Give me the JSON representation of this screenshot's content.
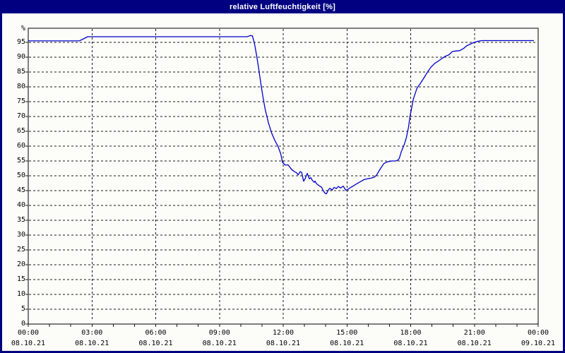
{
  "window": {
    "title": "relative Luftfeuchtigkeit [%]"
  },
  "colors": {
    "titlebar_bg": "#000080",
    "titlebar_text": "#FFFFFF",
    "plot_bg": "#FCFCF8",
    "frame": "#000000",
    "grid": "#1a1a1a",
    "line": "#0000CC",
    "label_text": "#000000"
  },
  "chart_data": {
    "type": "line",
    "title": "relative Luftfeuchtigkeit [%]",
    "ylabel": "%",
    "ylim": [
      0,
      100
    ],
    "xlim_hours": [
      0,
      24
    ],
    "grid": "dashed",
    "y_ticks": [
      0,
      5,
      10,
      15,
      20,
      25,
      30,
      35,
      40,
      45,
      50,
      55,
      60,
      65,
      70,
      75,
      80,
      85,
      90,
      95
    ],
    "x_axis": {
      "major_tick_interval_hours": 3,
      "minor_tick_interval_hours": 1,
      "ticks": [
        {
          "time": "00:00",
          "date": "08.10.21"
        },
        {
          "time": "03:00",
          "date": "08.10.21"
        },
        {
          "time": "06:00",
          "date": "08.10.21"
        },
        {
          "time": "09:00",
          "date": "08.10.21"
        },
        {
          "time": "12:00",
          "date": "08.10.21"
        },
        {
          "time": "15:00",
          "date": "08.10.21"
        },
        {
          "time": "18:00",
          "date": "08.10.21"
        },
        {
          "time": "21:00",
          "date": "08.10.21"
        },
        {
          "time": "00:00",
          "date": "09.10.21"
        }
      ]
    },
    "series": [
      {
        "name": "relative Luftfeuchtigkeit",
        "unit": "%",
        "color": "#0000CC",
        "points": [
          [
            0.0,
            95.5
          ],
          [
            2.4,
            95.5
          ],
          [
            2.6,
            96.2
          ],
          [
            2.8,
            96.9
          ],
          [
            10.3,
            96.9
          ],
          [
            10.45,
            97.3
          ],
          [
            10.55,
            97.2
          ],
          [
            10.65,
            94.5
          ],
          [
            10.75,
            90.5
          ],
          [
            10.85,
            86.0
          ],
          [
            10.95,
            81.0
          ],
          [
            11.05,
            76.5
          ],
          [
            11.15,
            72.5
          ],
          [
            11.3,
            68.0
          ],
          [
            11.45,
            64.5
          ],
          [
            11.6,
            62.0
          ],
          [
            11.75,
            60.0
          ],
          [
            11.88,
            57.5
          ],
          [
            11.97,
            54.5
          ],
          [
            12.1,
            53.6
          ],
          [
            12.23,
            53.7
          ],
          [
            12.4,
            52.1
          ],
          [
            12.53,
            51.4
          ],
          [
            12.63,
            51.0
          ],
          [
            12.7,
            50.3
          ],
          [
            12.8,
            51.4
          ],
          [
            12.87,
            51.1
          ],
          [
            12.96,
            48.2
          ],
          [
            13.03,
            49.0
          ],
          [
            13.13,
            50.8
          ],
          [
            13.23,
            49.0
          ],
          [
            13.3,
            49.4
          ],
          [
            13.36,
            48.6
          ],
          [
            13.46,
            47.8
          ],
          [
            13.5,
            48.2
          ],
          [
            13.56,
            47.4
          ],
          [
            13.7,
            46.6
          ],
          [
            13.8,
            46.2
          ],
          [
            13.9,
            44.8
          ],
          [
            13.96,
            44.2
          ],
          [
            14.03,
            43.9
          ],
          [
            14.13,
            45.3
          ],
          [
            14.2,
            45.8
          ],
          [
            14.3,
            45.2
          ],
          [
            14.4,
            46.1
          ],
          [
            14.5,
            45.7
          ],
          [
            14.6,
            46.4
          ],
          [
            14.7,
            45.9
          ],
          [
            14.83,
            46.5
          ],
          [
            14.9,
            45.7
          ],
          [
            14.96,
            45.1
          ],
          [
            15.06,
            45.5
          ],
          [
            15.2,
            46.2
          ],
          [
            15.3,
            46.6
          ],
          [
            15.46,
            47.3
          ],
          [
            15.63,
            48.0
          ],
          [
            15.8,
            48.7
          ],
          [
            15.96,
            49.0
          ],
          [
            16.13,
            49.2
          ],
          [
            16.3,
            49.6
          ],
          [
            16.4,
            50.3
          ],
          [
            16.53,
            51.9
          ],
          [
            16.63,
            53.0
          ],
          [
            16.73,
            54.1
          ],
          [
            16.86,
            54.6
          ],
          [
            16.96,
            54.8
          ],
          [
            17.13,
            55.0
          ],
          [
            17.3,
            55.0
          ],
          [
            17.4,
            55.3
          ],
          [
            17.46,
            55.8
          ],
          [
            17.56,
            58.2
          ],
          [
            17.7,
            60.6
          ],
          [
            17.8,
            63.0
          ],
          [
            17.9,
            66.5
          ],
          [
            17.96,
            69.7
          ],
          [
            18.13,
            76.0
          ],
          [
            18.3,
            79.6
          ],
          [
            18.46,
            81.2
          ],
          [
            18.63,
            83.1
          ],
          [
            18.8,
            85.1
          ],
          [
            18.96,
            86.7
          ],
          [
            19.13,
            87.9
          ],
          [
            19.3,
            88.7
          ],
          [
            19.46,
            89.5
          ],
          [
            19.63,
            90.3
          ],
          [
            19.8,
            90.8
          ],
          [
            19.96,
            91.9
          ],
          [
            20.13,
            92.1
          ],
          [
            20.3,
            92.2
          ],
          [
            20.5,
            93.0
          ],
          [
            20.63,
            93.8
          ],
          [
            20.8,
            94.4
          ],
          [
            20.96,
            94.9
          ],
          [
            21.13,
            95.3
          ],
          [
            21.35,
            95.6
          ],
          [
            23.8,
            95.6
          ]
        ]
      }
    ]
  }
}
